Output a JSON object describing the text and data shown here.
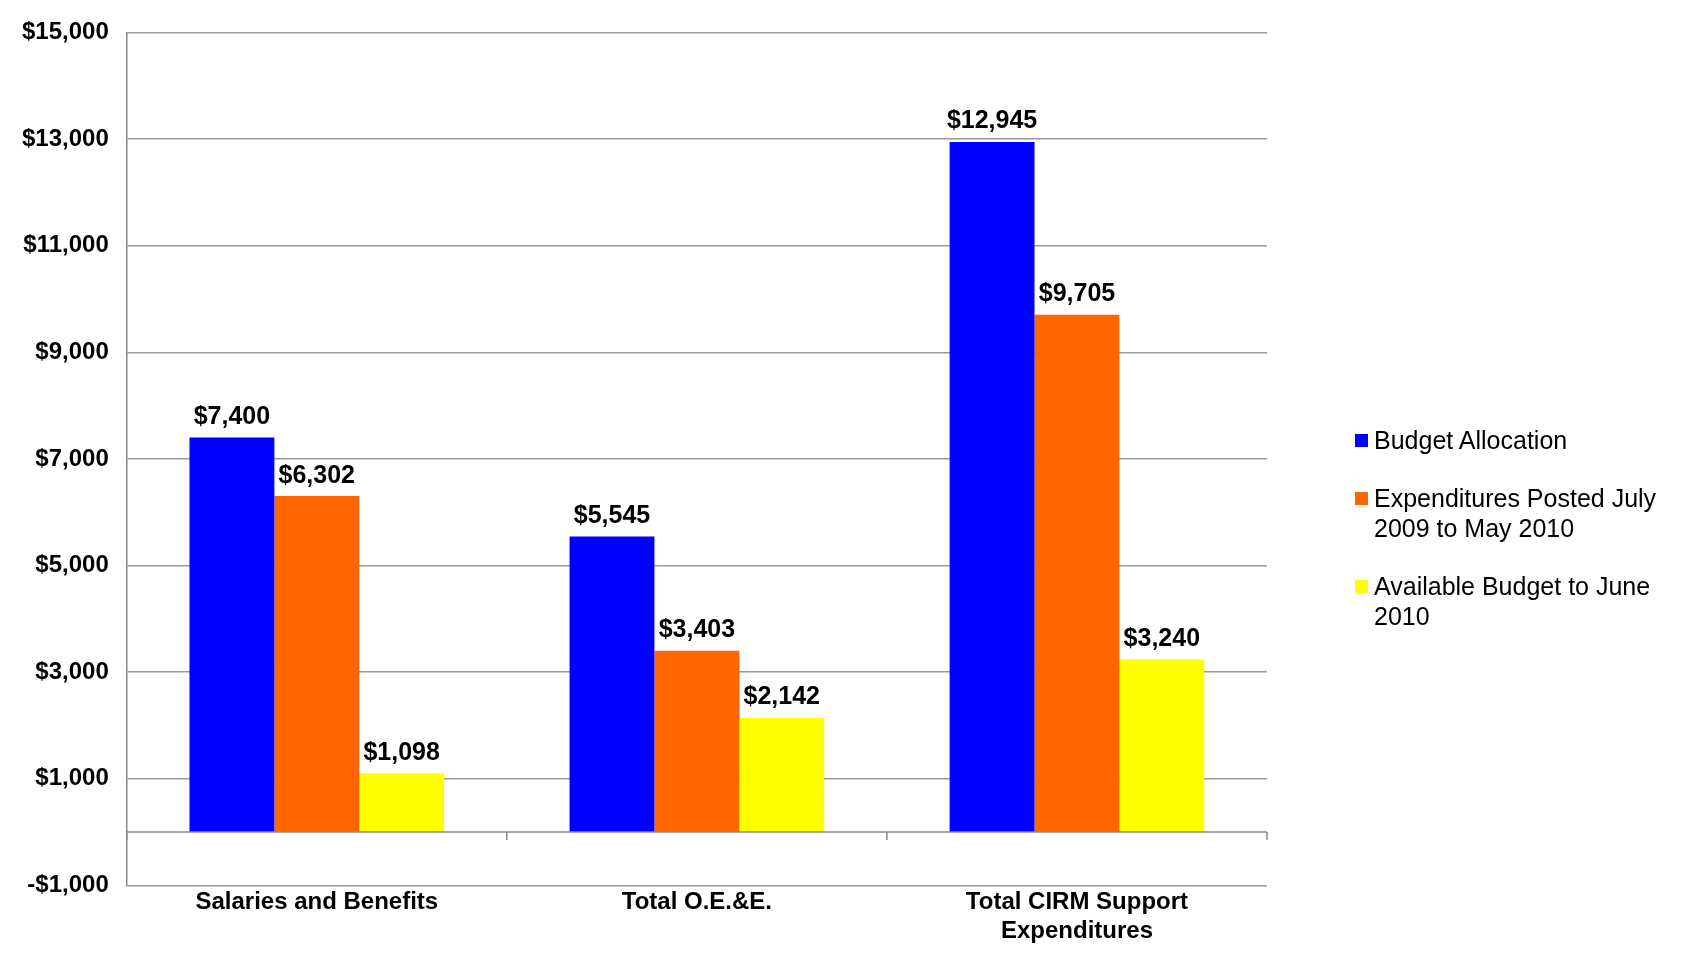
{
  "chart_data": {
    "type": "bar",
    "categories": [
      "Salaries and Benefits",
      "Total O.E.&E.",
      "Total CIRM Support Expenditures"
    ],
    "series": [
      {
        "name": "Budget Allocation",
        "color": "#0000ff",
        "values": [
          7400,
          5545,
          12945
        ],
        "value_labels": [
          "$7,400",
          "$5,545",
          "$12,945"
        ]
      },
      {
        "name": "Expenditures Posted July 2009 to May 2010",
        "color": "#ff6600",
        "values": [
          6302,
          3403,
          9705
        ],
        "value_labels": [
          "$6,302",
          "$3,403",
          "$9,705"
        ]
      },
      {
        "name": "Available Budget  to June 2010",
        "color": "#ffff00",
        "values": [
          1098,
          2142,
          3240
        ],
        "value_labels": [
          "$1,098",
          "$2,142",
          "$3,240"
        ]
      }
    ],
    "ylim": [
      -1000,
      15000
    ],
    "yticks": [
      {
        "value": -1000,
        "label": "-$1,000"
      },
      {
        "value": 1000,
        "label": "$1,000"
      },
      {
        "value": 3000,
        "label": "$3,000"
      },
      {
        "value": 5000,
        "label": "$5,000"
      },
      {
        "value": 7000,
        "label": "$7,000"
      },
      {
        "value": 9000,
        "label": "$9,000"
      },
      {
        "value": 11000,
        "label": "$11,000"
      },
      {
        "value": 13000,
        "label": "$13,000"
      },
      {
        "value": 15000,
        "label": "$15,000"
      }
    ],
    "grid": "y",
    "legend": "right"
  }
}
